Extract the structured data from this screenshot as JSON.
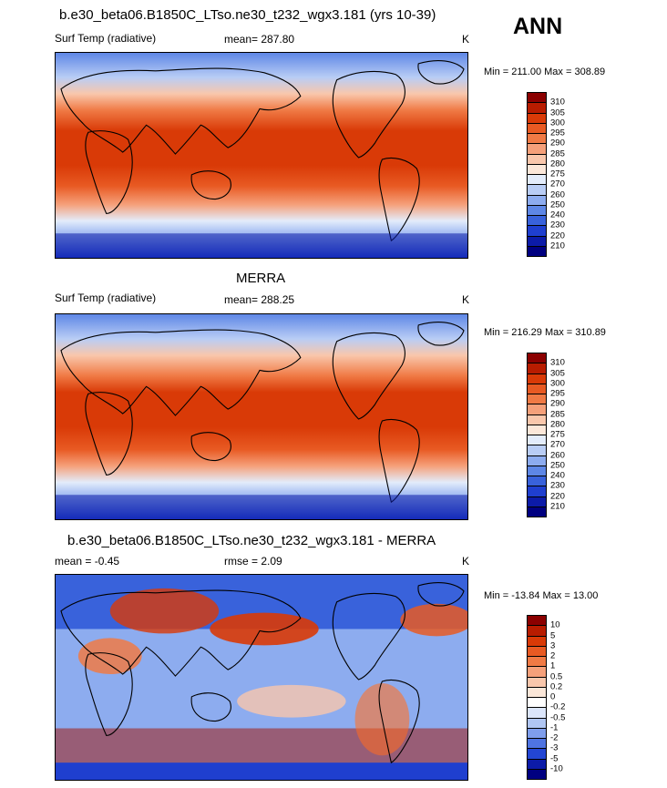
{
  "header": {
    "ann": "ANN"
  },
  "panels": [
    {
      "title": "b.e30_beta06.B1850C_LTso.ne30_t232_wgx3.181 (yrs 10-39)",
      "left": "Surf Temp (radiative)",
      "center": "mean= 287.80",
      "units": "K",
      "minmax": "Min = 211.00 Max = 308.89",
      "colorbar": {
        "labels": [
          "310",
          "305",
          "300",
          "295",
          "290",
          "285",
          "280",
          "275",
          "270",
          "260",
          "250",
          "240",
          "230",
          "220",
          "210"
        ],
        "colors": [
          "#8b0000",
          "#b81c00",
          "#d93a07",
          "#e85a23",
          "#f07a45",
          "#f5a07a",
          "#f9c7ac",
          "#fbe7d9",
          "#e3ecfb",
          "#b9cdf5",
          "#8dacef",
          "#5e87e6",
          "#3962db",
          "#1f3fcf",
          "#0c1ba8",
          "#000080"
        ]
      }
    },
    {
      "title": "MERRA",
      "left": "Surf Temp (radiative)",
      "center": "mean= 288.25",
      "units": "K",
      "minmax": "Min = 216.29 Max = 310.89",
      "colorbar": {
        "labels": [
          "310",
          "305",
          "300",
          "295",
          "290",
          "285",
          "280",
          "275",
          "270",
          "260",
          "250",
          "240",
          "230",
          "220",
          "210"
        ],
        "colors": [
          "#8b0000",
          "#b81c00",
          "#d93a07",
          "#e85a23",
          "#f07a45",
          "#f5a07a",
          "#f9c7ac",
          "#fbe7d9",
          "#e3ecfb",
          "#b9cdf5",
          "#8dacef",
          "#5e87e6",
          "#3962db",
          "#1f3fcf",
          "#0c1ba8",
          "#000080"
        ]
      }
    },
    {
      "title": "b.e30_beta06.B1850C_LTso.ne30_t232_wgx3.181 - MERRA",
      "left": "mean =  -0.45",
      "center": "rmse =   2.09",
      "units": "K",
      "minmax": "Min = -13.84 Max =  13.00",
      "colorbar": {
        "labels": [
          "10",
          "5",
          "3",
          "2",
          "1",
          "0.5",
          "0.2",
          "0",
          "-0.2",
          "-0.5",
          "-1",
          "-2",
          "-3",
          "-5",
          "-10"
        ],
        "colors": [
          "#8b0000",
          "#b81c00",
          "#d93a07",
          "#e85a23",
          "#f07a45",
          "#f5a07a",
          "#f9c7ac",
          "#fbe7d9",
          "#ffffff",
          "#dce6fb",
          "#b0c6f3",
          "#7f9eec",
          "#4f74e2",
          "#2346d4",
          "#0c1ba8",
          "#000080"
        ]
      }
    }
  ]
}
